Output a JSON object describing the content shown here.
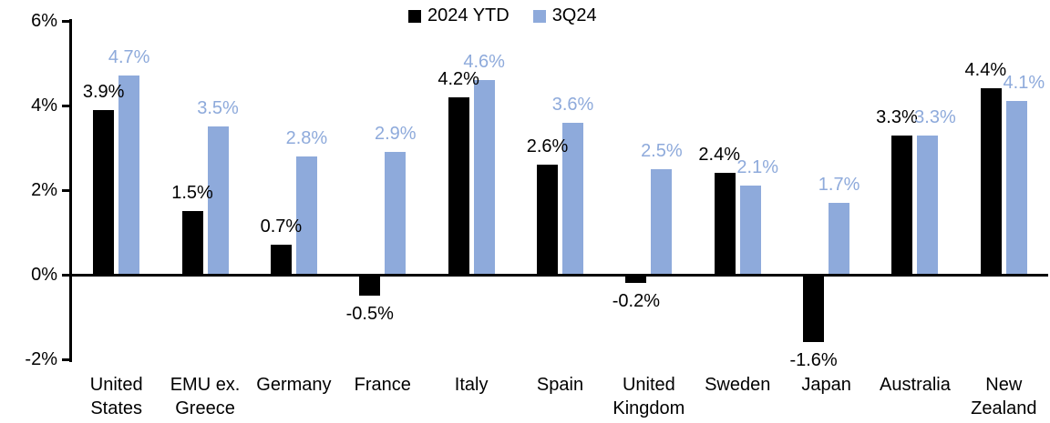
{
  "chart_data": {
    "type": "bar",
    "title": "",
    "xlabel": "",
    "ylabel": "",
    "categories": [
      "United States",
      "EMU ex. Greece",
      "Germany",
      "France",
      "Italy",
      "Spain",
      "United Kingdom",
      "Sweden",
      "Japan",
      "Australia",
      "New Zealand"
    ],
    "series": [
      {
        "name": "2024 YTD",
        "color": "#000000",
        "values": [
          3.9,
          1.5,
          0.7,
          -0.5,
          4.2,
          2.6,
          -0.2,
          2.4,
          -1.6,
          3.3,
          4.4
        ],
        "labels": [
          "3.9%",
          "1.5%",
          "0.7%",
          "-0.5%",
          "4.2%",
          "2.6%",
          "-0.2%",
          "2.4%",
          "-1.6%",
          "3.3%",
          "4.4%"
        ]
      },
      {
        "name": "3Q24",
        "color": "#8EAADB",
        "values": [
          4.7,
          3.5,
          2.8,
          2.9,
          4.6,
          3.6,
          2.5,
          2.1,
          1.7,
          3.3,
          4.1
        ],
        "labels": [
          "4.7%",
          "3.5%",
          "2.8%",
          "2.9%",
          "4.6%",
          "3.6%",
          "2.5%",
          "2.1%",
          "1.7%",
          "3.3%",
          "4.1%"
        ]
      }
    ],
    "ylim": [
      -2,
      6
    ],
    "yticks": [
      {
        "value": 6,
        "label": "6%"
      },
      {
        "value": 4,
        "label": "4%"
      },
      {
        "value": 2,
        "label": "2%"
      },
      {
        "value": 0,
        "label": "0%"
      },
      {
        "value": -2,
        "label": "-2%"
      }
    ],
    "grid": false,
    "legend_position": "top-center",
    "axis_color": "#000000",
    "background_color": "#FFFFFF"
  }
}
